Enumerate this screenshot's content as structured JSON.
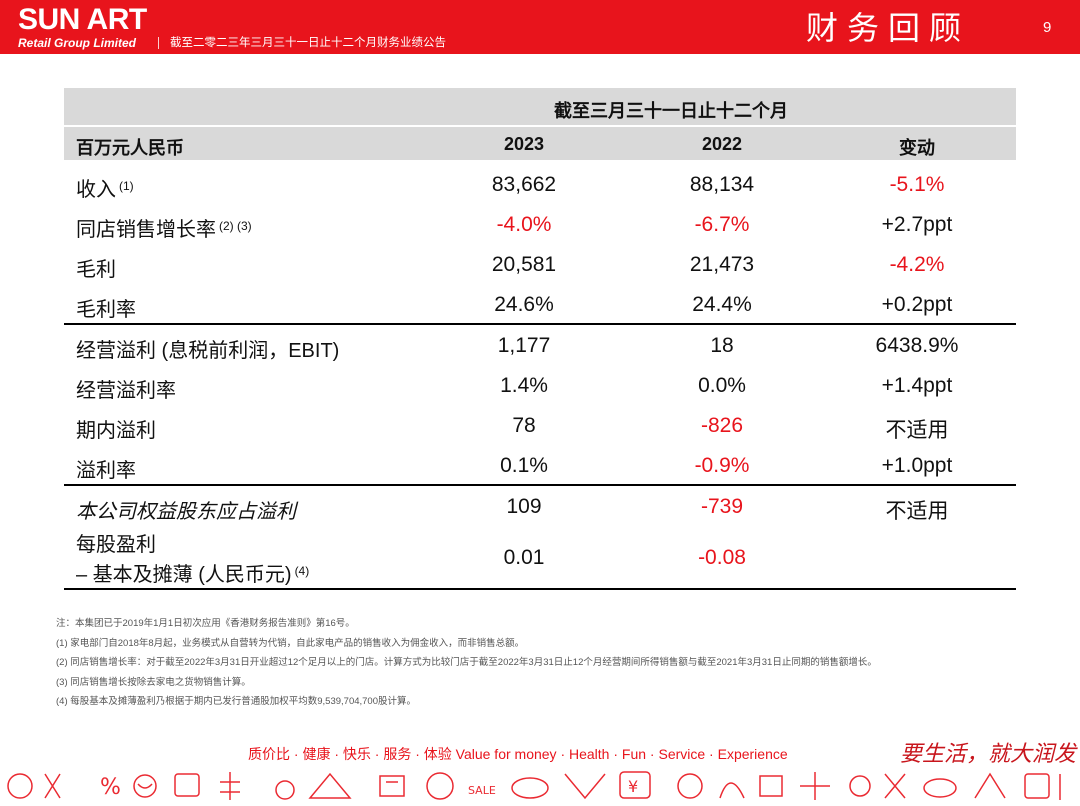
{
  "header": {
    "logo_main": "SUN ART",
    "logo_sub": "Retail Group Limited",
    "subtitle": "截至二零二三年三月三十一日止十二个月财务业绩公告",
    "section_title": "财务回顾",
    "page_number": "9"
  },
  "table": {
    "period_header": "截至三月三十一日止十二个月",
    "columns": {
      "label": "百万元人民币",
      "y2023": "2023",
      "y2022": "2022",
      "change": "变动"
    },
    "rows": [
      {
        "label": "收入",
        "note": "(1)",
        "y2023": "83,662",
        "y2022": "88,134",
        "change": "-5.1%"
      },
      {
        "label": "同店销售增长率",
        "note": "(2) (3)",
        "y2023": "-4.0%",
        "y2022": "-6.7%",
        "change": "+2.7ppt"
      },
      {
        "label": "毛利",
        "note": "",
        "y2023": "20,581",
        "y2022": "21,473",
        "change": "-4.2%"
      },
      {
        "label": "毛利率",
        "note": "",
        "y2023": "24.6%",
        "y2022": "24.4%",
        "change": "+0.2ppt"
      },
      {
        "label": "经营溢利 (息税前利润，EBIT)",
        "note": "",
        "y2023": "1,177",
        "y2022": "18",
        "change": "6438.9%"
      },
      {
        "label": "经营溢利率",
        "note": "",
        "y2023": "1.4%",
        "y2022": "0.0%",
        "change": "+1.4ppt"
      },
      {
        "label": "期内溢利",
        "note": "",
        "y2023": "78",
        "y2022": "-826",
        "change": "不适用"
      },
      {
        "label": "溢利率",
        "note": "",
        "y2023": "0.1%",
        "y2022": "-0.9%",
        "change": "+1.0ppt"
      },
      {
        "label": "本公司权益股东应占溢利",
        "note": "",
        "y2023": "109",
        "y2022": "-739",
        "change": "不适用"
      },
      {
        "label": "每股盈利",
        "label_line2": "– 基本及摊薄 (人民币元)",
        "note": "(4)",
        "y2023": "0.01",
        "y2022": "-0.08",
        "change": ""
      }
    ]
  },
  "notes": [
    "注：本集团已于2019年1月1日初次应用《香港财务报告准则》第16号。",
    "(1) 家电部门自2018年8月起，业务模式从自营转为代销，自此家电产品的销售收入为佣金收入，而非销售总额。",
    "(2) 同店销售增长率：对于截至2022年3月31日开业超过12个足月以上的门店。计算方式为比较门店于截至2022年3月31日止12个月经营期间所得销售额与截至2021年3月31日止同期的销售额增长。",
    "(3) 同店销售增长按除去家电之货物销售计算。",
    "(4) 每股基本及摊薄盈利乃根据于期内已发行普通股加权平均数9,539,704,700股计算。"
  ],
  "footer": {
    "slogan": "质价比 · 健康 · 快乐 · 服务 · 体验   Value for money · Health · Fun · Service · Experience",
    "tagline": "要生活，就大润发"
  },
  "colors": {
    "brand_red": "#e8141c",
    "header_gray": "#d9d9d9"
  }
}
